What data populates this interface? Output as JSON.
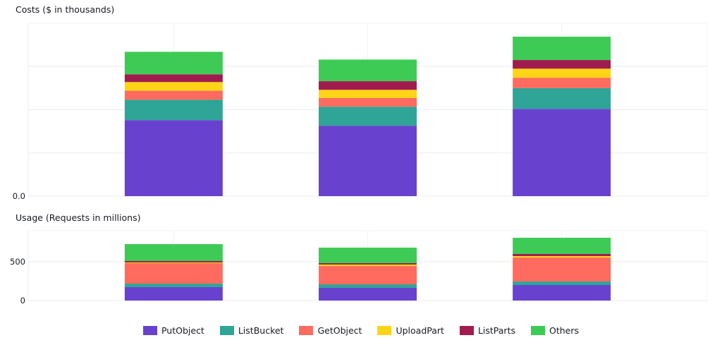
{
  "chart_data": [
    {
      "type": "bar",
      "stacked": true,
      "title": "Costs ($ in thousands)",
      "categories": [
        "",
        "",
        ""
      ],
      "ylim": [
        0,
        4
      ],
      "yticks": [
        0,
        1,
        2,
        3
      ],
      "ytick_labels": [
        "0.0",
        "",
        "",
        ""
      ],
      "grid": true,
      "series": [
        {
          "name": "PutObject",
          "values": [
            1.76,
            1.63,
            2.02
          ]
        },
        {
          "name": "ListBucket",
          "values": [
            0.47,
            0.44,
            0.48
          ]
        },
        {
          "name": "GetObject",
          "values": [
            0.21,
            0.2,
            0.24
          ]
        },
        {
          "name": "UploadPart",
          "values": [
            0.2,
            0.19,
            0.21
          ]
        },
        {
          "name": "ListParts",
          "values": [
            0.18,
            0.2,
            0.2
          ]
        },
        {
          "name": "Others",
          "values": [
            0.52,
            0.5,
            0.54
          ]
        }
      ]
    },
    {
      "type": "bar",
      "stacked": true,
      "title": "Usage (Requests in millions)",
      "categories": [
        "",
        "",
        ""
      ],
      "ylim": [
        0,
        900
      ],
      "yticks": [
        0,
        500
      ],
      "ytick_labels": [
        "0",
        "500"
      ],
      "grid": true,
      "series": [
        {
          "name": "PutObject",
          "values": [
            173,
            164,
            200
          ]
        },
        {
          "name": "ListBucket",
          "values": [
            45,
            45,
            45
          ]
        },
        {
          "name": "GetObject",
          "values": [
            264,
            236,
            310
          ]
        },
        {
          "name": "UploadPart",
          "values": [
            9,
            19,
            18
          ]
        },
        {
          "name": "ListParts",
          "values": [
            18,
            18,
            27
          ]
        },
        {
          "name": "Others",
          "values": [
            218,
            200,
            209
          ]
        }
      ]
    }
  ],
  "legend": {
    "placement": "bottom",
    "items": [
      {
        "label": "PutObject",
        "color": "#6842cf"
      },
      {
        "label": "ListBucket",
        "color": "#2ea597"
      },
      {
        "label": "GetObject",
        "color": "#ff6b5e"
      },
      {
        "label": "UploadPart",
        "color": "#fdd516"
      },
      {
        "label": "ListParts",
        "color": "#a01c4f"
      },
      {
        "label": "Others",
        "color": "#3ecb55"
      }
    ]
  }
}
